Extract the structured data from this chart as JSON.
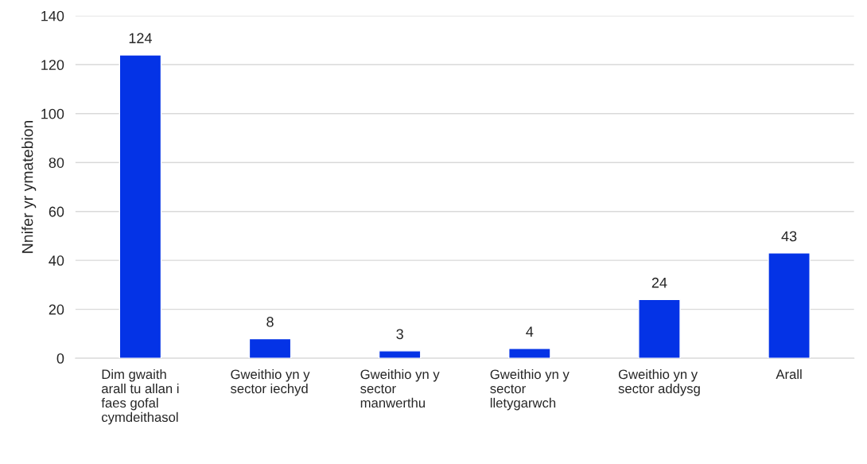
{
  "chart_data": {
    "type": "bar",
    "ylabel": "Nnifer yr ymatebion",
    "categories": [
      "Dim gwaith\narall tu allan i\nfaes gofal\ncymdeithasol",
      "Gweithio yn y\nsector iechyd",
      "Gweithio yn y\nsector\nmanwerthu",
      "Gweithio yn y\nsector\nlletygarwch",
      "Gweithio yn y\nsector addysg",
      "Arall"
    ],
    "values": [
      124,
      8,
      3,
      4,
      24,
      43
    ],
    "color": "#0433e6",
    "ylim": [
      0,
      140
    ],
    "yticks": [
      0,
      20,
      40,
      60,
      80,
      100,
      120,
      140
    ],
    "grid": "y",
    "data_labels": true,
    "legend": false
  }
}
